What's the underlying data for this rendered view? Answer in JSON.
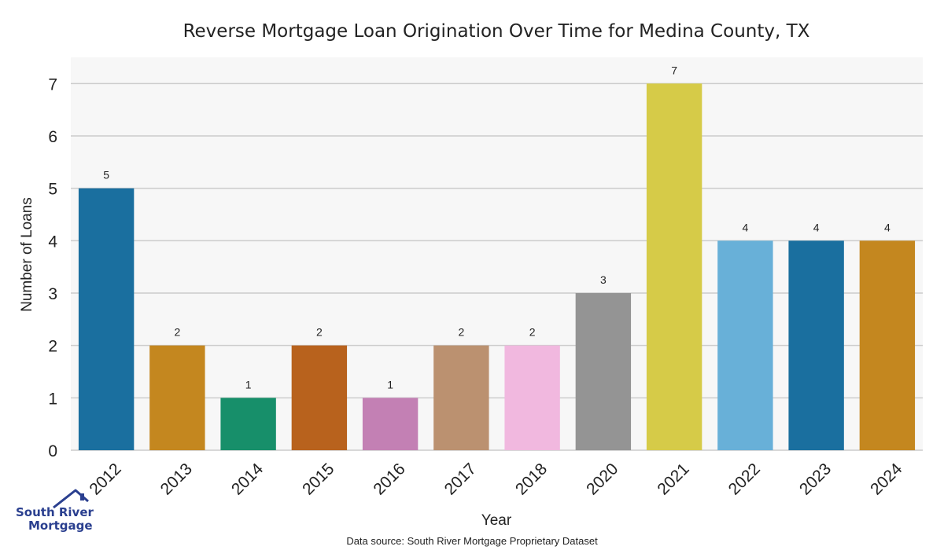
{
  "chart_data": {
    "type": "bar",
    "title": "Reverse Mortgage Loan Origination Over Time for Medina County, TX",
    "xlabel": "Year",
    "ylabel": "Number of Loans",
    "categories": [
      "2012",
      "2013",
      "2014",
      "2015",
      "2016",
      "2017",
      "2018",
      "2020",
      "2021",
      "2022",
      "2023",
      "2024"
    ],
    "values": [
      5,
      2,
      1,
      2,
      1,
      2,
      2,
      3,
      7,
      4,
      4,
      4
    ],
    "colors": [
      "#1a6f9f",
      "#c4871f",
      "#178f6a",
      "#b8621d",
      "#c380b4",
      "#bb9170",
      "#f1b8df",
      "#949494",
      "#d6cb48",
      "#68b0d8",
      "#1a6f9f",
      "#c4871f"
    ],
    "y_ticks": [
      0,
      1,
      2,
      3,
      4,
      5,
      6,
      7
    ],
    "ylim": [
      0,
      7.5
    ],
    "grid": true
  },
  "source_note": "Data source: South River Mortgage Proprietary Dataset",
  "logo": {
    "line1": "South River",
    "line2": "Mortgage",
    "icon": "house-roof-icon",
    "color": "#2a3f8f"
  }
}
